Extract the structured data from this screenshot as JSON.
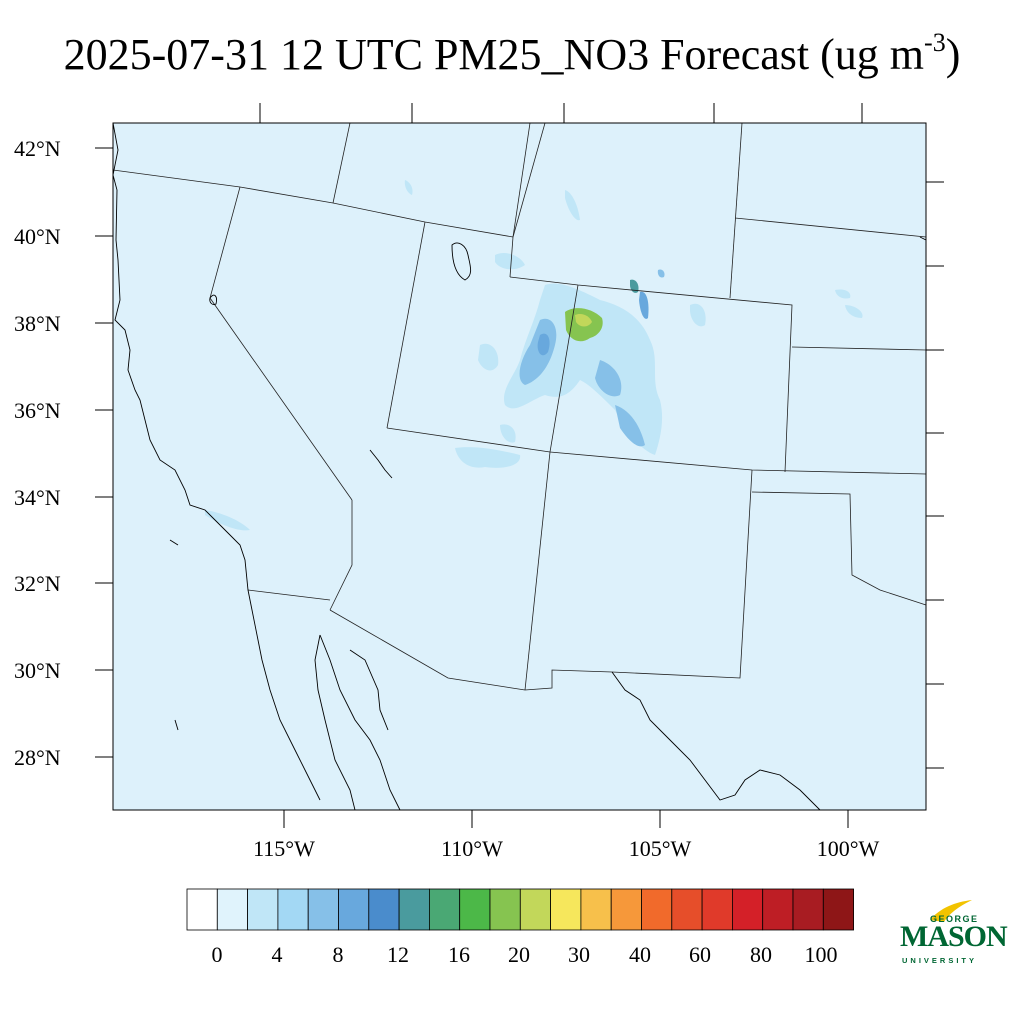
{
  "title": {
    "main": "2025-07-31 12 UTC PM25_NO3 Forecast (ug m",
    "exponent": "-3",
    "close": ")"
  },
  "axes": {
    "lat_labels": [
      "42°N",
      "40°N",
      "38°N",
      "36°N",
      "34°N",
      "32°N",
      "30°N",
      "28°N"
    ],
    "lon_labels": [
      "115°W",
      "110°W",
      "105°W",
      "100°W"
    ]
  },
  "colorbar": {
    "labels": [
      "0",
      "4",
      "8",
      "12",
      "16",
      "20",
      "30",
      "40",
      "60",
      "80",
      "100"
    ],
    "colors": [
      "#ffffff",
      "#e0f3fc",
      "#c0e6f7",
      "#a3d8f4",
      "#86c0e8",
      "#68a8dd",
      "#4a8ccc",
      "#4a9b9e",
      "#4aa874",
      "#4cb848",
      "#86c450",
      "#c2d75a",
      "#f6e75c",
      "#f7c04b",
      "#f6983a",
      "#f16a2b",
      "#e64e2a",
      "#e03a2a",
      "#d42028",
      "#be1e25",
      "#a81c22",
      "#8e1617"
    ]
  },
  "logo": {
    "line1": "GEORGE",
    "line2": "MASON",
    "line3": "UNIVERSITY",
    "color": "#006633",
    "accent": "#f2c300"
  },
  "map": {
    "background_color": "#ddf1fb",
    "variable": "PM25_NO3"
  }
}
